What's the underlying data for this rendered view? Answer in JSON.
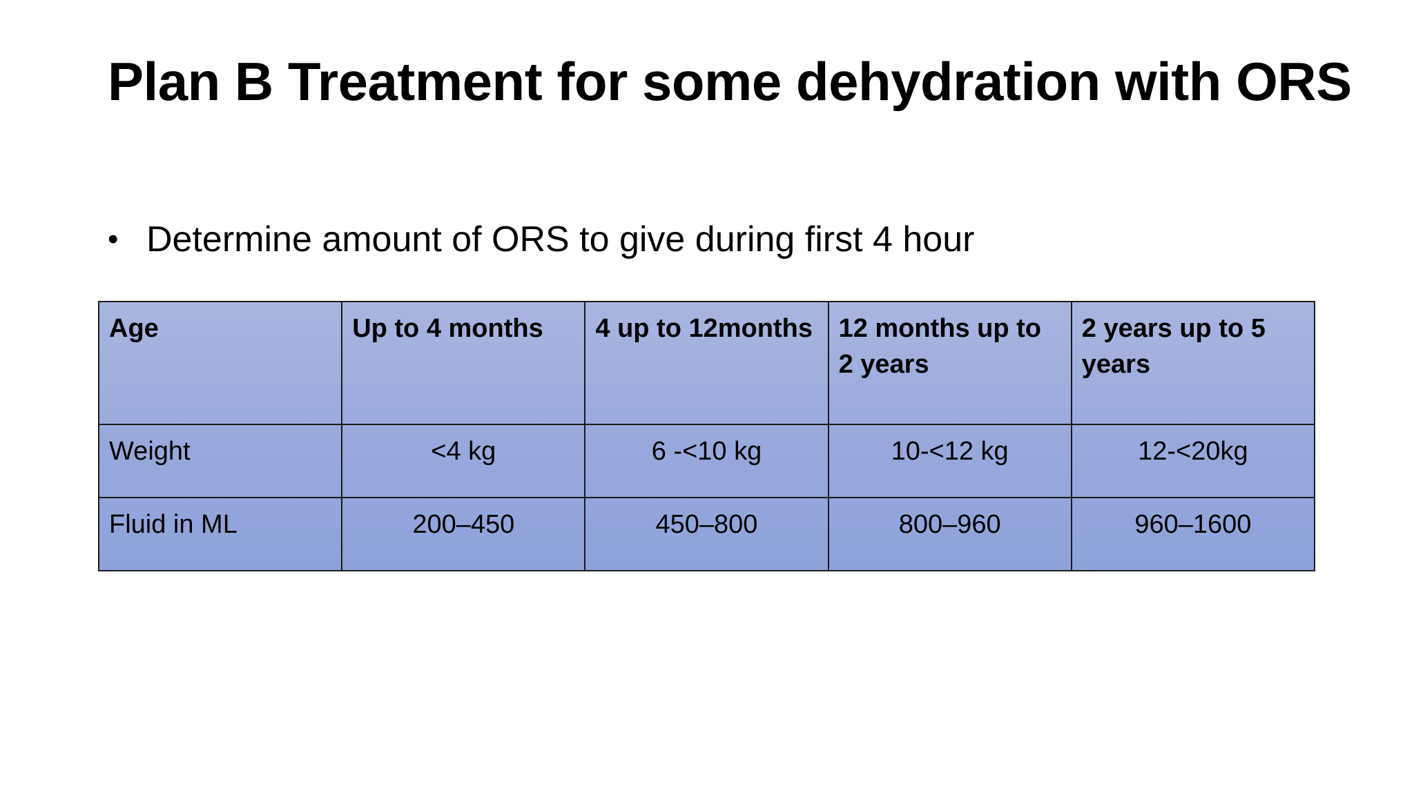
{
  "slide": {
    "title": "Plan B Treatment for some dehydration with ORS",
    "bullet": "Determine amount of ORS to give during first 4 hour",
    "bullet_symbol": "•"
  },
  "table": {
    "header": {
      "label": "Age",
      "cells": [
        "Up to 4 months",
        "4 up to 12months",
        "12 months up to 2 years",
        "2 years up to 5 years"
      ]
    },
    "weight_row": {
      "label": "Weight",
      "cells": [
        "<4 kg",
        "6 -<10 kg",
        "10-<12 kg",
        "12-<20kg"
      ]
    },
    "fluid_row": {
      "label": "Fluid in ML",
      "cells": [
        "200–450",
        "450–800",
        "800–960",
        "960–1600"
      ]
    }
  },
  "colors": {
    "table_fill_top": "#a9b5e0",
    "table_fill_bottom": "#8ea2da",
    "table_border": "#1a1a1a",
    "text": "#000000",
    "background": "#ffffff"
  }
}
